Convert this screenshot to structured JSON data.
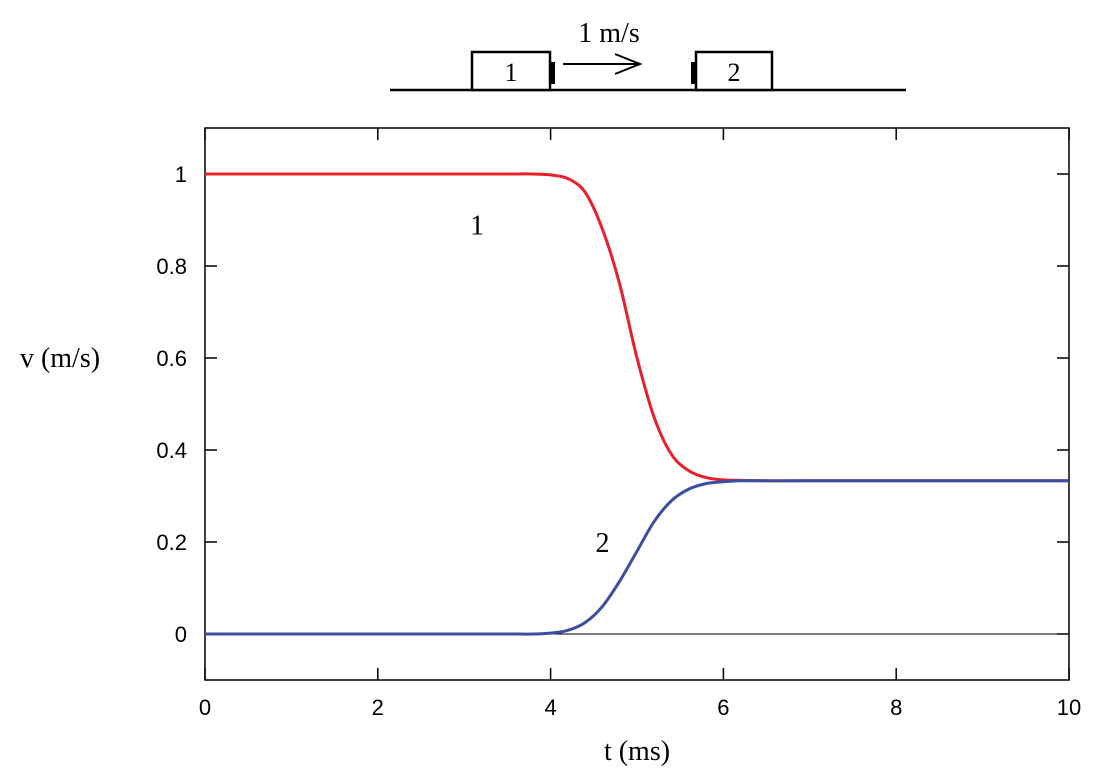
{
  "diagram": {
    "block1_label": "1",
    "block2_label": "2",
    "speed_label": "1 m/s"
  },
  "chart_data": {
    "type": "line",
    "title": "",
    "xlabel": "t (ms)",
    "ylabel": "v (m/s)",
    "xlim": [
      0,
      10
    ],
    "ylim": [
      -0.1,
      1.1
    ],
    "xticks": [
      "0",
      "2",
      "4",
      "6",
      "8",
      "10"
    ],
    "yticks": [
      "0",
      "0.2",
      "0.4",
      "0.6",
      "0.8",
      "1"
    ],
    "grid": false,
    "series": [
      {
        "name": "1",
        "color": "#e8202a",
        "x": [
          0,
          1,
          2,
          3,
          3.5,
          3.8,
          4.0,
          4.2,
          4.4,
          4.6,
          4.8,
          5.0,
          5.2,
          5.4,
          5.6,
          5.8,
          6.0,
          6.2,
          6.5,
          7,
          8,
          9,
          10
        ],
        "y": [
          1.0,
          1.0,
          1.0,
          1.0,
          1.0,
          1.0,
          0.998,
          0.99,
          0.96,
          0.88,
          0.76,
          0.6,
          0.47,
          0.39,
          0.355,
          0.34,
          0.335,
          0.334,
          0.333,
          0.333,
          0.333,
          0.333,
          0.333
        ]
      },
      {
        "name": "2",
        "color": "#3a4fa0",
        "x": [
          0,
          1,
          2,
          3,
          3.5,
          3.8,
          4.0,
          4.2,
          4.4,
          4.6,
          4.8,
          5.0,
          5.2,
          5.4,
          5.6,
          5.8,
          6.0,
          6.2,
          6.5,
          7,
          8,
          9,
          10
        ],
        "y": [
          0.0,
          0.0,
          0.0,
          0.0,
          0.0,
          0.0,
          0.002,
          0.008,
          0.025,
          0.06,
          0.115,
          0.18,
          0.245,
          0.29,
          0.315,
          0.327,
          0.331,
          0.333,
          0.333,
          0.333,
          0.333,
          0.333,
          0.333
        ]
      }
    ],
    "series_label_positions": [
      {
        "name": "1",
        "x": 3.15,
        "y": 0.89
      },
      {
        "name": "2",
        "x": 4.6,
        "y": 0.2
      }
    ]
  }
}
